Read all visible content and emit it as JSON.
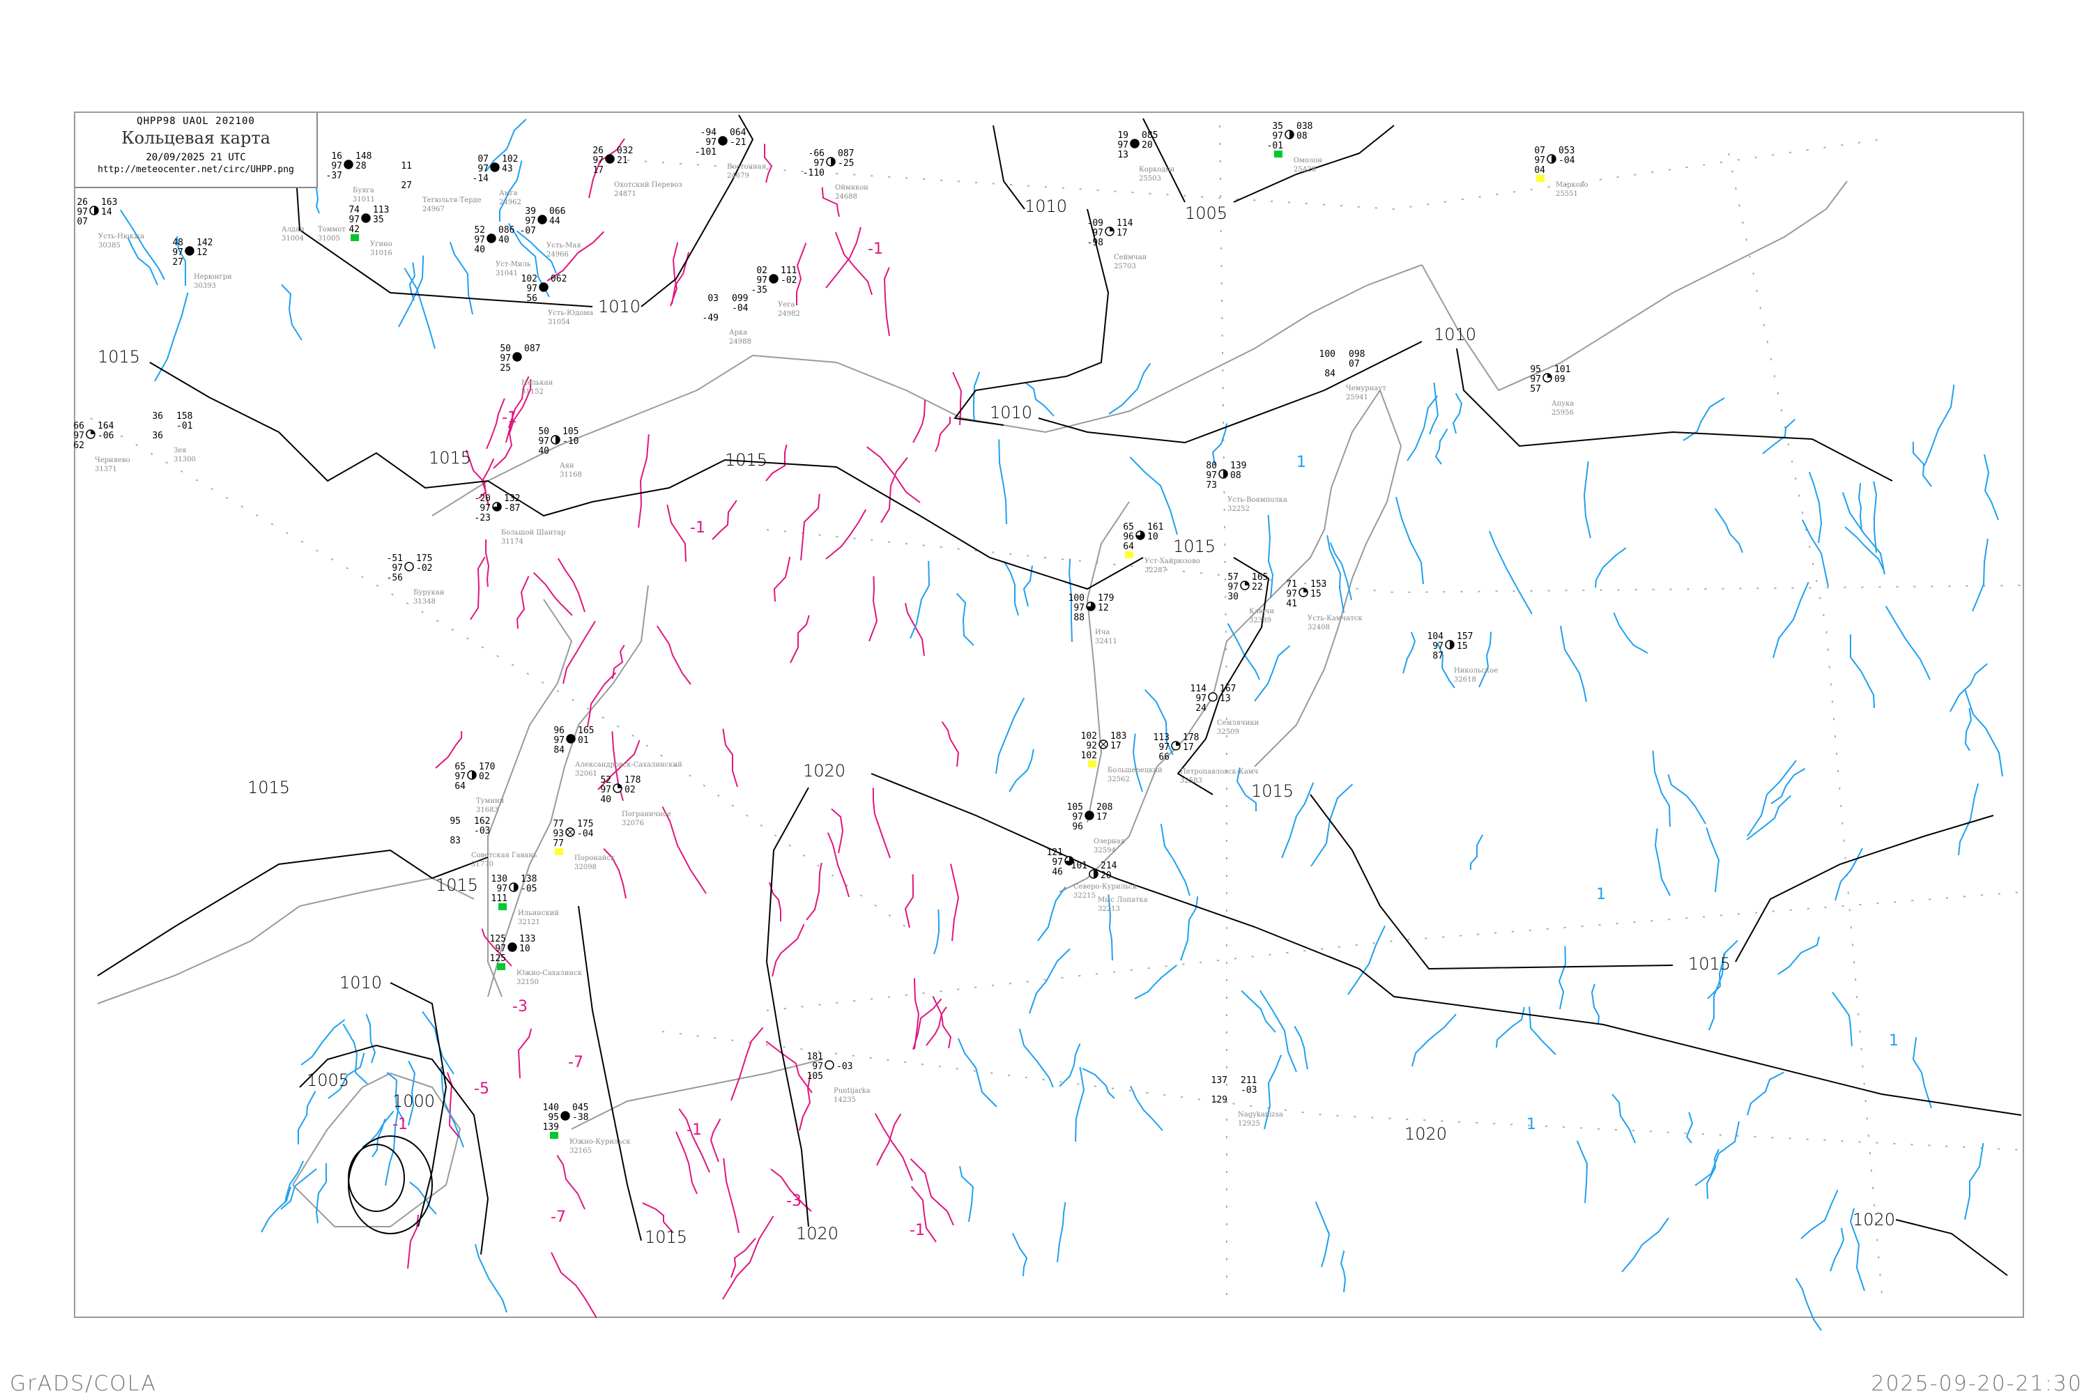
{
  "header": {
    "code": "QHPP98  UAOL  202100",
    "title": "Кольцевая карта",
    "date": "20/09/2025 21 UTC",
    "url": "http://meteocenter.net/circ/UHPP.png"
  },
  "footer": {
    "left": "GrADS/COLA",
    "right": "2025-09-20-21:30"
  },
  "colors": {
    "isobar": "#000000",
    "coast": "#9a9a9a",
    "tendency_negative": "#e0157f",
    "tendency_positive": "#1ea0f0",
    "rain_marker": "#00c832",
    "fog_marker": "#ffff33"
  },
  "isobar_labels": [
    "1015",
    "1015",
    "1015",
    "1010",
    "1010",
    "1005",
    "1010",
    "1010",
    "1015",
    "1015",
    "1020",
    "1015",
    "1015",
    "1010",
    "1005",
    "1000",
    "1015",
    "1020",
    "1020",
    "1015",
    "1020"
  ],
  "tendency_labels": [
    "-1",
    "-1",
    "-1",
    "-3",
    "-5",
    "-7",
    "-7",
    "-1",
    "-3",
    "-1",
    "-1",
    "1",
    "1",
    "1",
    "1"
  ],
  "stations": [
    {
      "name": "Усть-Нюкжа",
      "id": "30385",
      "t": "26",
      "p": "97",
      "td": "07",
      "ppp": "163",
      "tend": "14",
      "cover": "half"
    },
    {
      "name": "Нерюнгри",
      "id": "30393",
      "t": "48",
      "p": "97",
      "td": "27",
      "ppp": "142",
      "tend": "12",
      "cover": "full"
    },
    {
      "name": "Алдан",
      "id": "31004",
      "t": "",
      "p": "",
      "td": "",
      "ppp": "",
      "tend": "",
      "cover": "none"
    },
    {
      "name": "Томмот",
      "id": "31005",
      "t": "",
      "p": "",
      "td": "",
      "ppp": "",
      "tend": "",
      "cover": "none"
    },
    {
      "name": "Буяга",
      "id": "31011",
      "t": "16",
      "p": "97",
      "td": "-37",
      "ppp": "148",
      "tend": "28",
      "cover": "full"
    },
    {
      "name": "Угино",
      "id": "31016",
      "t": "74",
      "p": "97",
      "td": "42",
      "ppp": "113",
      "tend": "35",
      "cover": "full",
      "marker": "rain"
    },
    {
      "name": "Тегюльтя-Терде",
      "id": "24967",
      "t": "11",
      "p": "",
      "td": "27",
      "ppp": "",
      "tend": "",
      "cover": "none"
    },
    {
      "name": "Амга",
      "id": "24962",
      "t": "07",
      "p": "97",
      "td": "-14",
      "ppp": "102",
      "tend": "43",
      "cover": "full"
    },
    {
      "name": "Уст-Миль",
      "id": "31041",
      "t": "52",
      "p": "97",
      "td": "40",
      "ppp": "086",
      "tend": "40",
      "cover": "full"
    },
    {
      "name": "Усть-Мая",
      "id": "24966",
      "t": "39",
      "p": "97",
      "td": "-07",
      "ppp": "066",
      "tend": "44",
      "cover": "full"
    },
    {
      "name": "Охотский Перевоз",
      "id": "24871",
      "t": "26",
      "p": "97",
      "td": "17",
      "ppp": "032",
      "tend": "21",
      "cover": "full"
    },
    {
      "name": "Усть-Юдома",
      "id": "31054",
      "t": "102",
      "p": "97",
      "td": "56",
      "ppp": "062",
      "tend": "",
      "cover": "full"
    },
    {
      "name": "Восточная",
      "id": "24679",
      "t": "-94",
      "p": "97",
      "td": "-101",
      "ppp": "064",
      "tend": "-21",
      "cover": "full"
    },
    {
      "name": "Оймякон",
      "id": "24688",
      "t": "-66",
      "p": "97",
      "td": "-110",
      "ppp": "087",
      "tend": "-25",
      "cover": "half"
    },
    {
      "name": "Уега",
      "id": "24982",
      "t": "02",
      "p": "97",
      "td": "-35",
      "ppp": "111",
      "tend": "-02",
      "cover": "full"
    },
    {
      "name": "Арка",
      "id": "24988",
      "t": "03",
      "p": "",
      "td": "-49",
      "ppp": "099",
      "tend": "-04",
      "cover": "none"
    },
    {
      "name": "Сеймчан",
      "id": "25703",
      "t": "-09",
      "p": "97",
      "td": "-98",
      "ppp": "114",
      "tend": "17",
      "cover": "quarter"
    },
    {
      "name": "Коркодон",
      "id": "25503",
      "t": "19",
      "p": "97",
      "td": "13",
      "ppp": "085",
      "tend": "20",
      "cover": "full"
    },
    {
      "name": "Омолон",
      "id": "25428",
      "t": "35",
      "p": "97",
      "td": "-01",
      "ppp": "038",
      "tend": "08",
      "cover": "half",
      "marker": "rain"
    },
    {
      "name": "Марково",
      "id": "25551",
      "t": "07",
      "p": "97",
      "td": "04",
      "ppp": "053",
      "tend": "-04",
      "cover": "half",
      "marker": "fog"
    },
    {
      "name": "Чемурнаут",
      "id": "25941",
      "t": "100",
      "p": "",
      "td": "84",
      "ppp": "098",
      "tend": "07",
      "cover": "none"
    },
    {
      "name": "Апука",
      "id": "25956",
      "t": "95",
      "p": "97",
      "td": "57",
      "ppp": "101",
      "tend": "09",
      "cover": "quarter"
    },
    {
      "name": "Усть-Воямполка",
      "id": "32252",
      "t": "80",
      "p": "97",
      "td": "73",
      "ppp": "139",
      "tend": "08",
      "cover": "half"
    },
    {
      "name": "Уст-Хайрюзово",
      "id": "32287",
      "t": "65",
      "p": "96",
      "td": "64",
      "ppp": "161",
      "tend": "10",
      "cover": "three-quarter",
      "marker": "fog"
    },
    {
      "name": "Ича",
      "id": "32411",
      "t": "100",
      "p": "97",
      "td": "88",
      "ppp": "179",
      "tend": "12",
      "cover": "three-quarter"
    },
    {
      "name": "Ключи",
      "id": "32389",
      "t": "57",
      "p": "97",
      "td": "30",
      "ppp": "165",
      "tend": "22",
      "cover": "quarter"
    },
    {
      "name": "Усть-Камчатск",
      "id": "32408",
      "t": "71",
      "p": "97",
      "td": "41",
      "ppp": "153",
      "tend": "15",
      "cover": "quarter"
    },
    {
      "name": "Семлячики",
      "id": "32509",
      "t": "114",
      "p": "97",
      "td": "24",
      "ppp": "167",
      "tend": "13",
      "cover": "clear"
    },
    {
      "name": "Никольское",
      "id": "32618",
      "t": "104",
      "p": "97",
      "td": "87",
      "ppp": "157",
      "tend": "15",
      "cover": "half"
    },
    {
      "name": "Большерецкий",
      "id": "32562",
      "t": "102",
      "p": "92",
      "td": "102",
      "ppp": "183",
      "tend": "17",
      "cover": "obscured",
      "marker": "fog"
    },
    {
      "name": "Петропавловск-Камч",
      "id": "32583",
      "t": "113",
      "p": "97",
      "td": "66",
      "ppp": "178",
      "tend": "17",
      "cover": "quarter"
    },
    {
      "name": "Озерная",
      "id": "32594",
      "t": "105",
      "p": "97",
      "td": "96",
      "ppp": "208",
      "tend": "17",
      "cover": "full"
    },
    {
      "name": "Мыс Лопатка",
      "id": "32213",
      "t": "101",
      "p": "",
      "td": "",
      "ppp": "214",
      "tend": "20",
      "cover": "half"
    },
    {
      "name": "Северо-Курильск",
      "id": "32215",
      "t": "121",
      "p": "97",
      "td": "46",
      "ppp": "",
      "tend": "",
      "cover": "three-quarter"
    },
    {
      "name": "Нелькан",
      "id": "31152",
      "t": "50",
      "p": "97",
      "td": "25",
      "ppp": "087",
      "tend": "",
      "cover": "full"
    },
    {
      "name": "Аян",
      "id": "31168",
      "t": "50",
      "p": "97",
      "td": "40",
      "ppp": "105",
      "tend": "-10",
      "cover": "half"
    },
    {
      "name": "Большой Шантар",
      "id": "31174",
      "t": "-20",
      "p": "97",
      "td": "-23",
      "ppp": "132",
      "tend": "-87",
      "cover": "three-quarter"
    },
    {
      "name": "Бурукан",
      "id": "31348",
      "t": "-51",
      "p": "97",
      "td": "-56",
      "ppp": "175",
      "tend": "-02",
      "cover": "clear"
    },
    {
      "name": "Зея",
      "id": "31300",
      "t": "36",
      "p": "",
      "td": "36",
      "ppp": "158",
      "tend": "-01",
      "cover": "none"
    },
    {
      "name": "Черняево",
      "id": "31371",
      "t": "66",
      "p": "97",
      "td": "62",
      "ppp": "164",
      "tend": "-06",
      "cover": "quarter"
    },
    {
      "name": "Тумнин",
      "id": "31683",
      "t": "65",
      "p": "97",
      "td": "64",
      "ppp": "170",
      "tend": "02",
      "cover": "half"
    },
    {
      "name": "Советская Гавань",
      "id": "31770",
      "t": "95",
      "p": "",
      "td": "83",
      "ppp": "162",
      "tend": "-03",
      "cover": "none"
    },
    {
      "name": "Александровск-Сахалинский",
      "id": "32061",
      "t": "96",
      "p": "97",
      "td": "84",
      "ppp": "165",
      "tend": "01",
      "cover": "full"
    },
    {
      "name": "Пограничное",
      "id": "32076",
      "t": "52",
      "p": "97",
      "td": "40",
      "ppp": "178",
      "tend": "02",
      "cover": "quarter"
    },
    {
      "name": "Поронайск",
      "id": "32098",
      "t": "77",
      "p": "93",
      "td": "77",
      "ppp": "175",
      "tend": "-04",
      "cover": "obscured",
      "marker": "fog"
    },
    {
      "name": "Ильинский",
      "id": "32121",
      "t": "130",
      "p": "97",
      "td": "111",
      "ppp": "138",
      "tend": "-05",
      "cover": "half",
      "marker": "rain"
    },
    {
      "name": "Южно-Сахалинск",
      "id": "32150",
      "t": "125",
      "p": "97",
      "td": "125",
      "ppp": "133",
      "tend": "10",
      "cover": "full",
      "marker": "rain"
    },
    {
      "name": "Южно-Курильск",
      "id": "32165",
      "t": "140",
      "p": "95",
      "td": "139",
      "ppp": "045",
      "tend": "-38",
      "cover": "full",
      "marker": "rain"
    },
    {
      "name": "Puntijarka",
      "id": "14235",
      "t": "181",
      "p": "97",
      "td": "105",
      "ppp": "",
      "tend": "-03",
      "cover": "clear"
    },
    {
      "name": "Nagykanizsa",
      "id": "12925",
      "t": "137",
      "p": "",
      "td": "129",
      "ppp": "211",
      "tend": "-03",
      "cover": "none"
    }
  ]
}
